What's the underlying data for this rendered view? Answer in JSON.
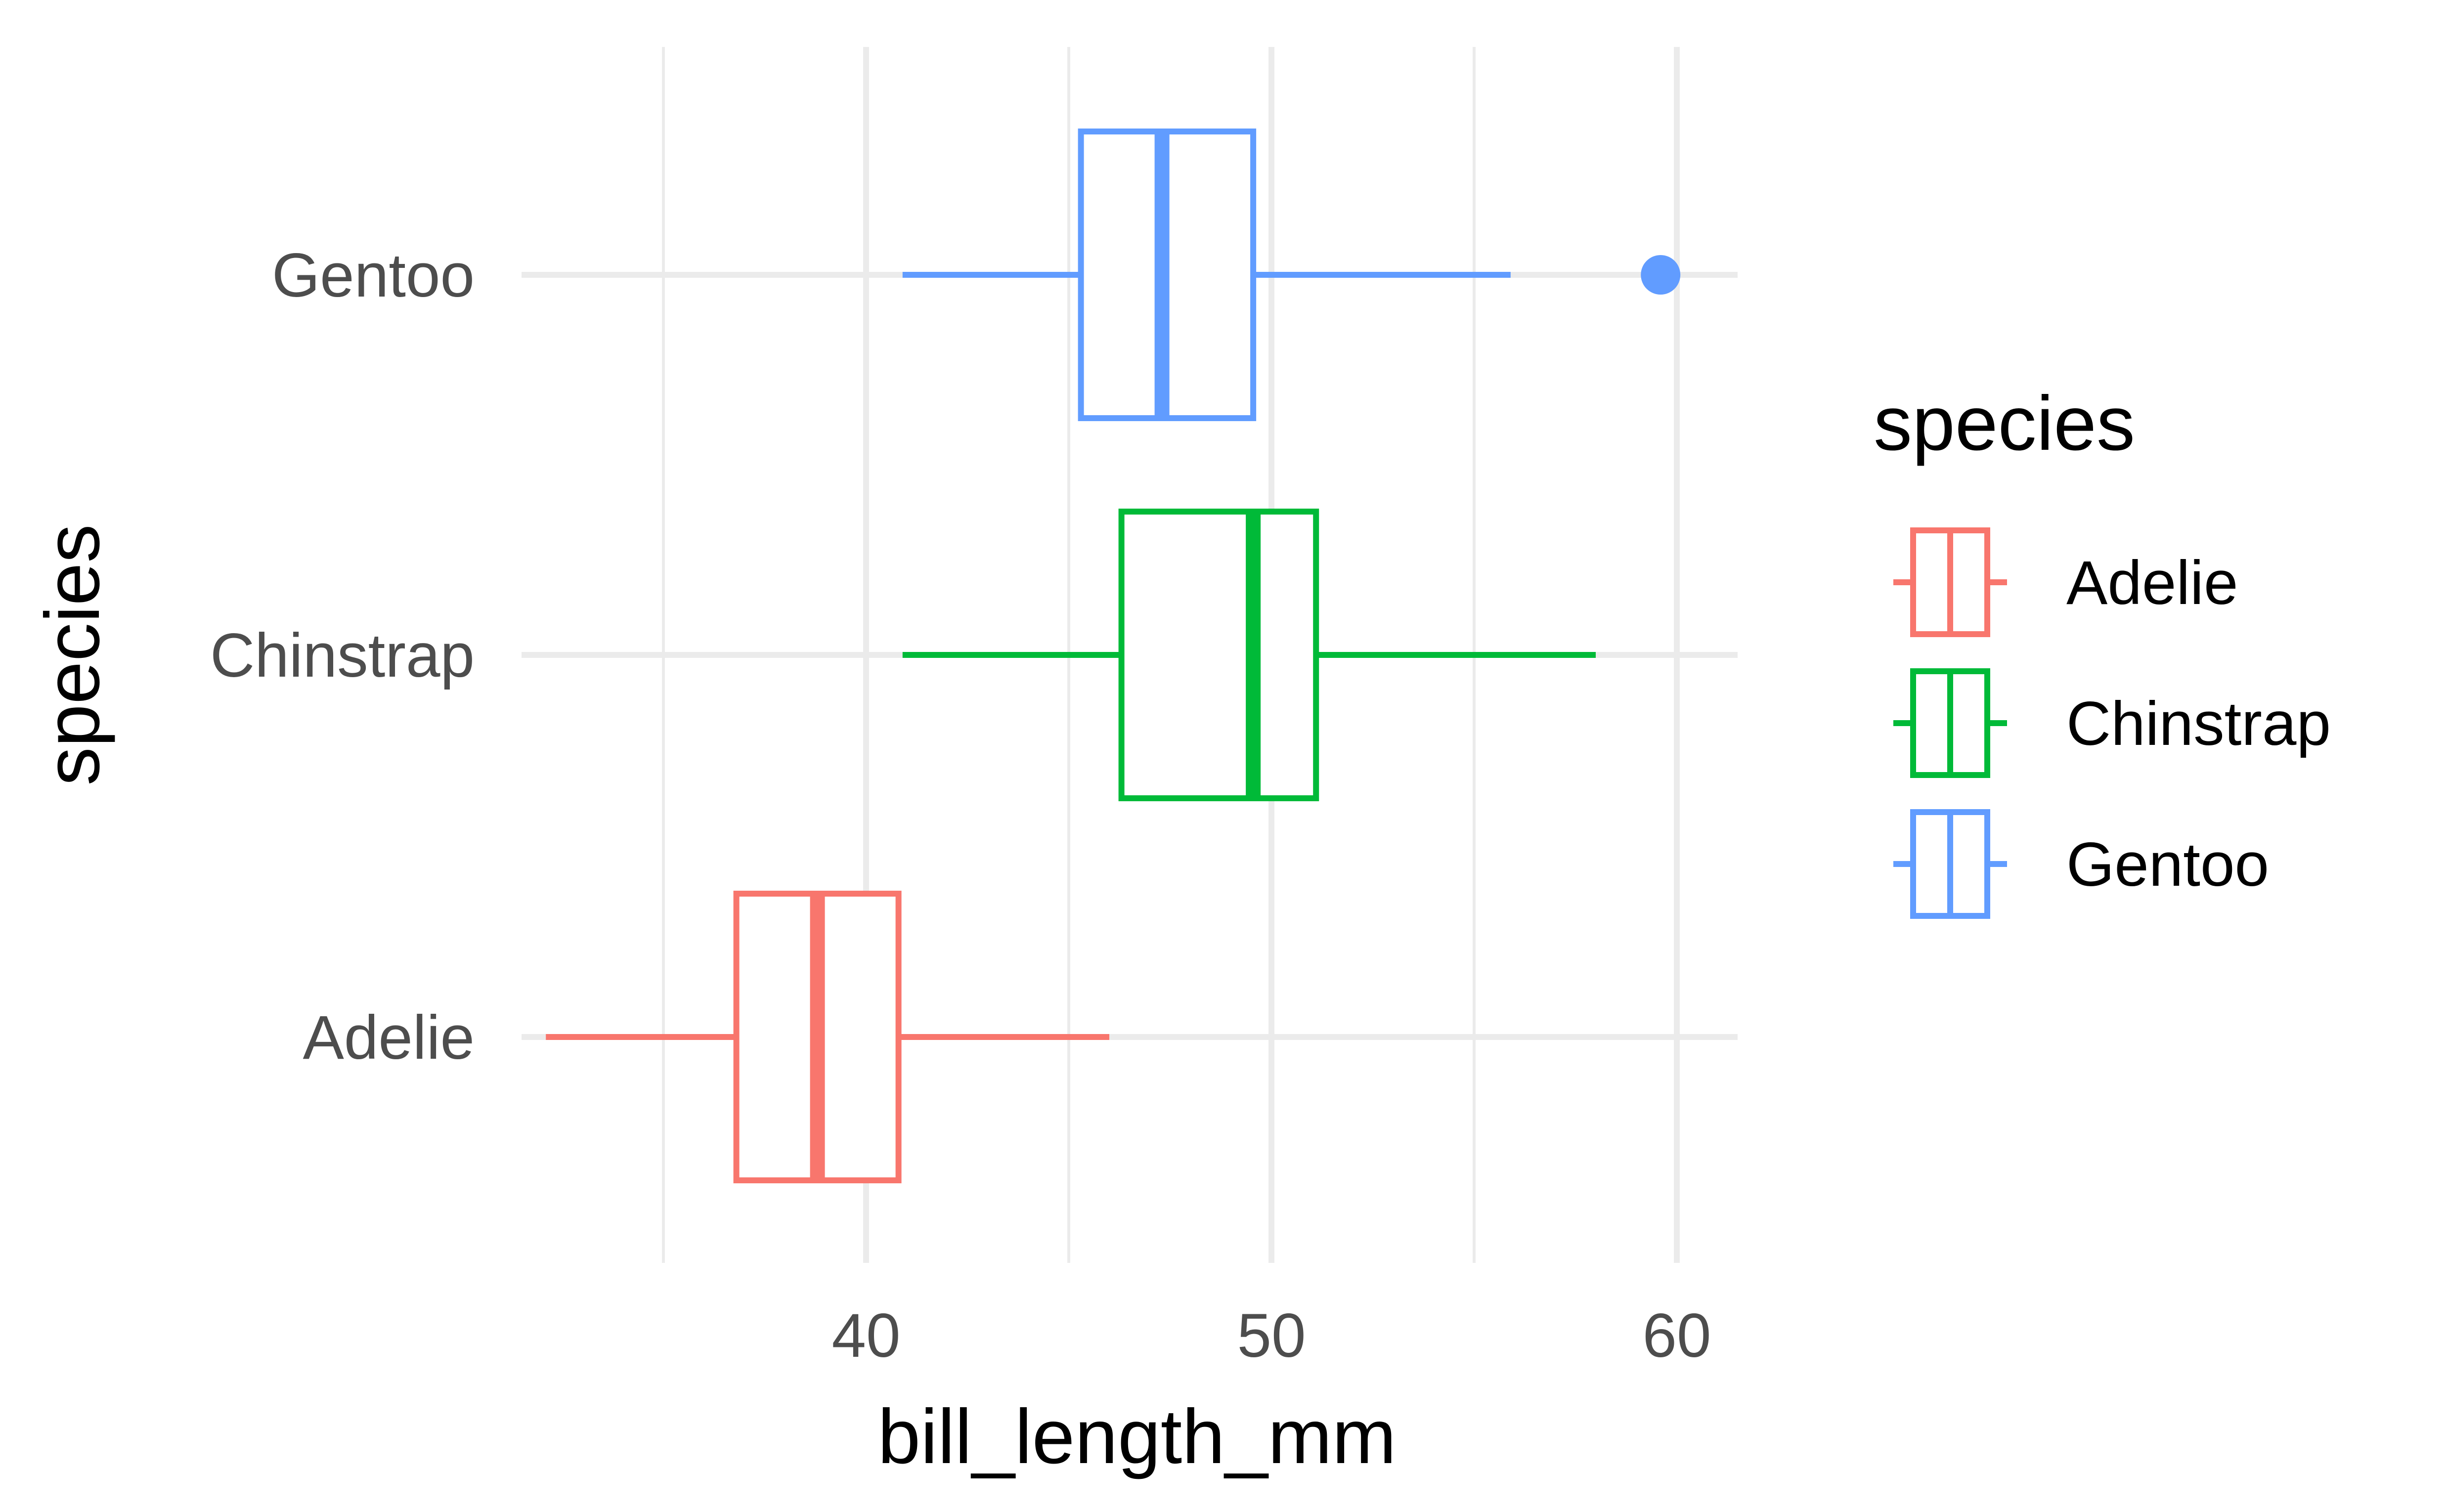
{
  "chart_data": {
    "type": "boxplot",
    "orientation": "horizontal",
    "xlabel": "bill_length_mm",
    "ylabel": "species",
    "xlim": [
      31.5,
      61.5
    ],
    "x_ticks": [
      40,
      50,
      60
    ],
    "x_minor_ticks": [
      35,
      45,
      55
    ],
    "grid": true,
    "categories": [
      "Adelie",
      "Chinstrap",
      "Gentoo"
    ],
    "series": [
      {
        "name": "Adelie",
        "color": "#F8766D",
        "whisker_low": 32.1,
        "q1": 36.8,
        "median": 38.8,
        "q3": 40.8,
        "whisker_high": 46.0,
        "outliers": []
      },
      {
        "name": "Chinstrap",
        "color": "#00BA38",
        "whisker_low": 40.9,
        "q1": 46.3,
        "median": 49.55,
        "q3": 51.1,
        "whisker_high": 58.0,
        "outliers": []
      },
      {
        "name": "Gentoo",
        "color": "#619CFF",
        "whisker_low": 40.9,
        "q1": 45.3,
        "median": 47.3,
        "q3": 49.55,
        "whisker_high": 55.9,
        "outliers": [
          59.6
        ]
      }
    ],
    "legend": {
      "title": "species",
      "position": "right",
      "items": [
        "Adelie",
        "Chinstrap",
        "Gentoo"
      ]
    }
  }
}
